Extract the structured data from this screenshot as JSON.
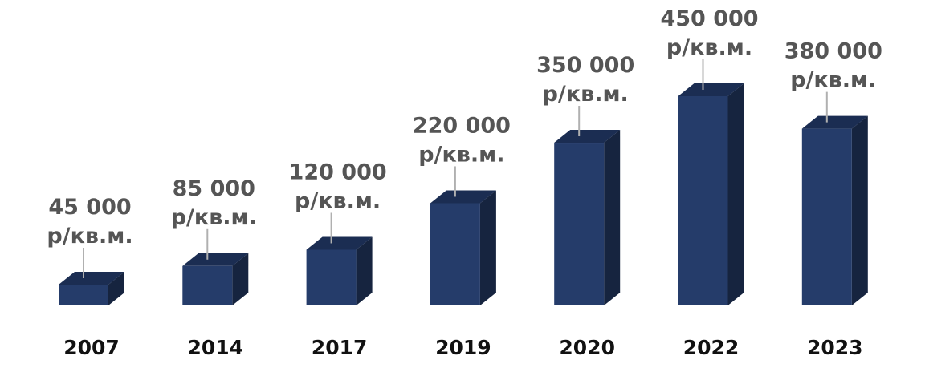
{
  "chart_data": {
    "type": "bar",
    "categories": [
      "2007",
      "2014",
      "2017",
      "2019",
      "2020",
      "2022",
      "2023"
    ],
    "values": [
      45000,
      85000,
      120000,
      220000,
      350000,
      450000,
      380000
    ],
    "value_labels": [
      {
        "amount": "45 000",
        "unit": "р/кв.м."
      },
      {
        "amount": "85 000",
        "unit": "р/кв.м."
      },
      {
        "amount": "120 000",
        "unit": "р/кв.м."
      },
      {
        "amount": "220 000",
        "unit": "р/кв.м."
      },
      {
        "amount": "350 000",
        "unit": "р/кв.м."
      },
      {
        "amount": "450 000",
        "unit": "р/кв.м."
      },
      {
        "amount": "380 000",
        "unit": "р/кв.м."
      }
    ],
    "title": "",
    "xlabel": "",
    "ylabel": "",
    "ylim": [
      0,
      450000
    ],
    "grid": false,
    "legend": "none",
    "colors": {
      "front": "#253c6a",
      "top": "#1b2d52",
      "side": "#16243f"
    }
  }
}
